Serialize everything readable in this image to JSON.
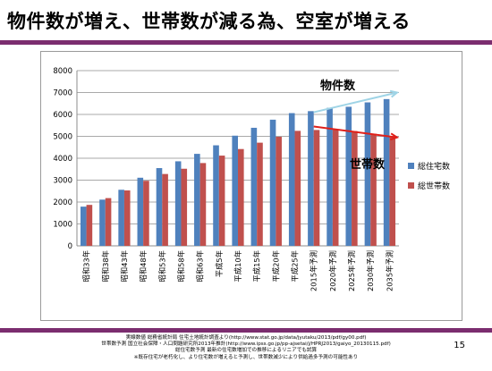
{
  "slide": {
    "title": "物件数が増え、世帯数が減る為、空室が増える",
    "page_number": "15",
    "notes": [
      "実線数値 総務省統計局 住宅土地統計調査より(http://www.stat.go.jp/data/jyutaku/2013/pdf/gy00.pdf)",
      "世帯数予測 国立社会保障・人口問題研究所2013年推計(http://www.ipss.go.jp/pp-ajsetai/j/HPRJ2013/gaiyo_20130115.pdf)",
      "総住宅数予測 最新の住宅数増加での推移によるリニアでも試算",
      "※既存住宅が老朽化し、より住宅数が増えると予測し、世帯数減少により供給過多予測の可能性あり"
    ]
  },
  "chart_data": {
    "type": "bar",
    "categories": [
      "昭和33年",
      "昭和38年",
      "昭和43年",
      "昭和48年",
      "昭和53年",
      "昭和58年",
      "昭和63年",
      "平成5年",
      "平成10年",
      "平成15年",
      "平成20年",
      "平成25年",
      "2015年予測",
      "2020年予測",
      "2025年予測",
      "2030年予測",
      "2035年予測"
    ],
    "series": [
      {
        "name": "総住宅数",
        "color": "#4f81bd",
        "values": [
          1790,
          2110,
          2560,
          3110,
          3550,
          3860,
          4200,
          4590,
          5030,
          5390,
          5760,
          6060,
          6150,
          6300,
          6350,
          6550,
          6700
        ]
      },
      {
        "name": "総世帯数",
        "color": "#c0504d",
        "values": [
          1870,
          2180,
          2530,
          2970,
          3280,
          3520,
          3780,
          4120,
          4420,
          4710,
          4980,
          5250,
          5290,
          5300,
          5240,
          5120,
          4960
        ]
      }
    ],
    "ylim": [
      0,
      8000
    ],
    "yticks": [
      0,
      1000,
      2000,
      3000,
      4000,
      5000,
      6000,
      7000,
      8000
    ],
    "grid": true,
    "legend": "right",
    "annotations": [
      {
        "text": "物件数",
        "arrow_color": "#9fd4e6",
        "arrow_from": [
          12,
          6100
        ],
        "arrow_to": [
          16.9,
          7000
        ]
      },
      {
        "text": "世帯数",
        "arrow_color": "#e0201a",
        "arrow_from": [
          12,
          5450
        ],
        "arrow_to": [
          16.9,
          4950
        ]
      }
    ]
  }
}
